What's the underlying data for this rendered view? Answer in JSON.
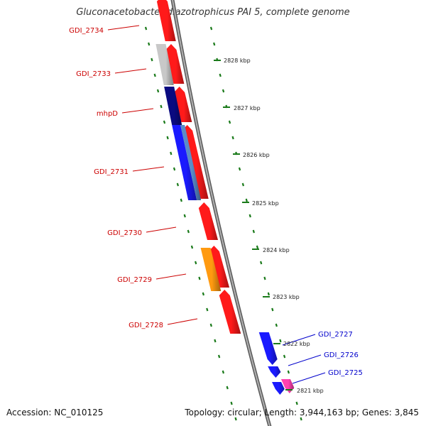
{
  "title": "Gluconacetobacter diazotrophicus PAI 5, complete genome",
  "footer": {
    "accession": "Accession: NC_010125",
    "topology": "Topology: circular; Length: 3,944,163 bp; Genes: 3,845"
  },
  "colors": {
    "gene_red": "#ff1a1a",
    "gene_blue": "#1a1aff",
    "gene_navy": "#0a0a80",
    "gene_gray": "#c8c8c8",
    "gene_orange": "#ff9a10",
    "gene_steelblue": "#5a8cc8",
    "gene_pink": "#ff40b0",
    "tick_green": "#1a7a1a",
    "label_red": "#cc0000",
    "label_blue": "#0000cc",
    "backbone": "#888888"
  },
  "scale_ticks": [
    {
      "label": "2828 kbp"
    },
    {
      "label": "2827 kbp"
    },
    {
      "label": "2826 kbp"
    },
    {
      "label": "2825 kbp"
    },
    {
      "label": "2824 kbp"
    },
    {
      "label": "2823 kbp"
    },
    {
      "label": "2822 kbp"
    },
    {
      "label": "2821 kbp"
    }
  ],
  "gene_labels_left": [
    {
      "name": "GDI_2734"
    },
    {
      "name": "GDI_2733"
    },
    {
      "name": "mhpD"
    },
    {
      "name": "GDI_2731"
    },
    {
      "name": "GDI_2730"
    },
    {
      "name": "GDI_2729"
    },
    {
      "name": "GDI_2728"
    }
  ],
  "gene_labels_right": [
    {
      "name": "GDI_2727"
    },
    {
      "name": "GDI_2726"
    },
    {
      "name": "GDI_2725"
    }
  ]
}
